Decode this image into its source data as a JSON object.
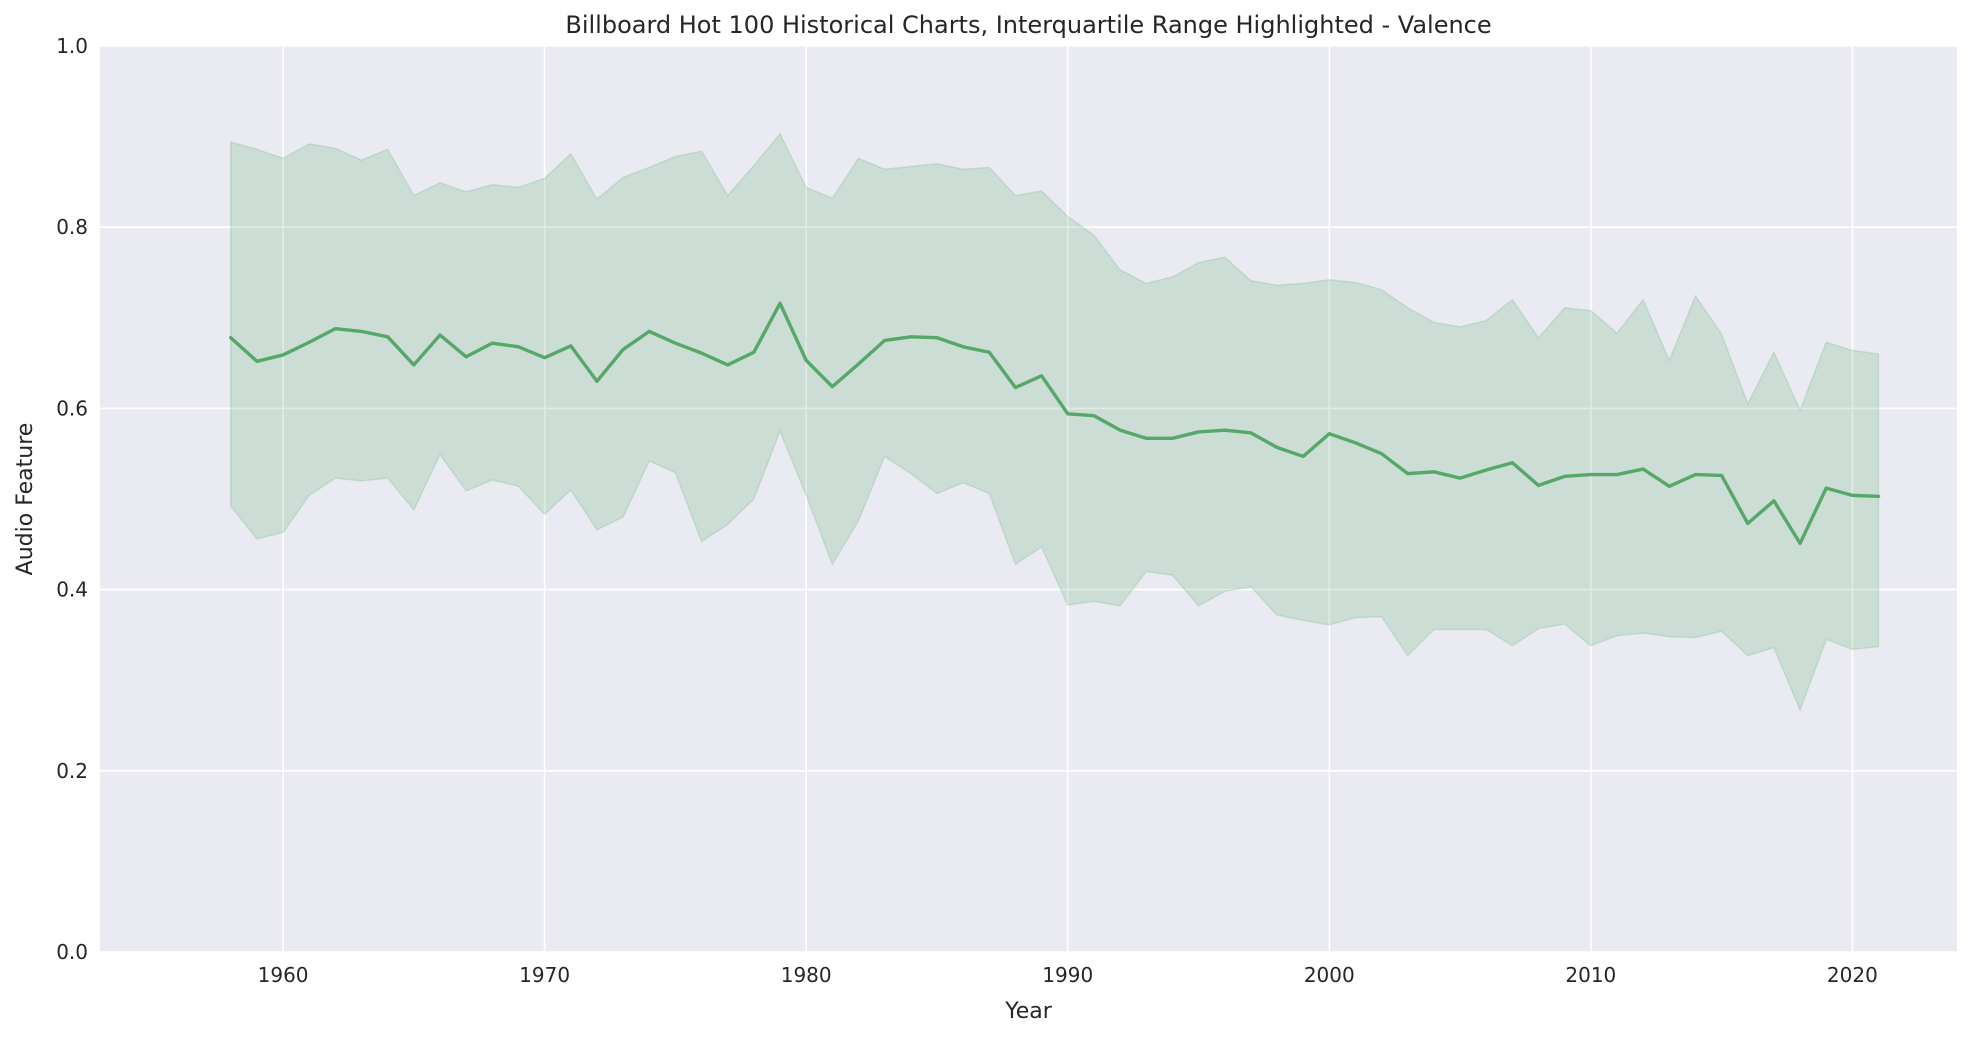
{
  "chart_data": {
    "type": "line",
    "title": "Billboard Hot 100 Historical Charts, Interquartile Range Highlighted - Valence",
    "xlabel": "Year",
    "ylabel": "Audio Feature",
    "xlim": [
      1953,
      2024
    ],
    "ylim": [
      0,
      1
    ],
    "x_ticks": [
      1960,
      1970,
      1980,
      1990,
      2000,
      2010,
      2020
    ],
    "y_ticks": [
      0.0,
      0.2,
      0.4,
      0.6,
      0.8,
      1.0
    ],
    "y_tick_labels": [
      "0.0",
      "0.2",
      "0.4",
      "0.6",
      "0.8",
      "1.0"
    ],
    "grid": true,
    "colors": {
      "background": "#eaeaf2",
      "grid": "#ffffff",
      "line": "#55a868",
      "band": "#55a868"
    },
    "x": [
      1958,
      1959,
      1960,
      1961,
      1962,
      1963,
      1964,
      1965,
      1966,
      1967,
      1968,
      1969,
      1970,
      1971,
      1972,
      1973,
      1974,
      1975,
      1976,
      1977,
      1978,
      1979,
      1980,
      1981,
      1982,
      1983,
      1984,
      1985,
      1986,
      1987,
      1988,
      1989,
      1990,
      1991,
      1992,
      1993,
      1994,
      1995,
      1996,
      1997,
      1998,
      1999,
      2000,
      2001,
      2002,
      2003,
      2004,
      2005,
      2006,
      2007,
      2008,
      2009,
      2010,
      2011,
      2012,
      2013,
      2014,
      2015,
      2016,
      2017,
      2018,
      2019,
      2020,
      2021
    ],
    "series": [
      {
        "type": "line",
        "values": [
          0.678,
          0.652,
          0.659,
          0.673,
          0.688,
          0.685,
          0.679,
          0.648,
          0.681,
          0.657,
          0.672,
          0.668,
          0.656,
          0.669,
          0.63,
          0.665,
          0.685,
          0.672,
          0.661,
          0.648,
          0.662,
          0.716,
          0.653,
          0.624,
          0.649,
          0.675,
          0.679,
          0.678,
          0.668,
          0.662,
          0.623,
          0.636,
          0.594,
          0.592,
          0.576,
          0.567,
          0.567,
          0.574,
          0.576,
          0.573,
          0.557,
          0.547,
          0.572,
          0.562,
          0.55,
          0.528,
          0.53,
          0.523,
          0.532,
          0.54,
          0.515,
          0.525,
          0.527,
          0.527,
          0.533,
          0.514,
          0.527,
          0.526,
          0.473,
          0.498,
          0.451,
          0.512,
          0.504,
          0.503
        ]
      },
      {
        "type": "band",
        "lower": [
          0.492,
          0.456,
          0.463,
          0.504,
          0.523,
          0.52,
          0.523,
          0.488,
          0.549,
          0.509,
          0.521,
          0.514,
          0.483,
          0.51,
          0.466,
          0.48,
          0.542,
          0.529,
          0.453,
          0.472,
          0.5,
          0.575,
          0.504,
          0.428,
          0.476,
          0.547,
          0.528,
          0.506,
          0.518,
          0.506,
          0.428,
          0.447,
          0.383,
          0.387,
          0.382,
          0.42,
          0.416,
          0.382,
          0.398,
          0.403,
          0.372,
          0.366,
          0.361,
          0.369,
          0.37,
          0.327,
          0.356,
          0.356,
          0.356,
          0.338,
          0.357,
          0.362,
          0.338,
          0.349,
          0.352,
          0.348,
          0.347,
          0.354,
          0.327,
          0.336,
          0.267,
          0.345,
          0.334,
          0.337
        ],
        "upper": [
          0.894,
          0.886,
          0.876,
          0.892,
          0.887,
          0.874,
          0.886,
          0.835,
          0.849,
          0.839,
          0.847,
          0.844,
          0.854,
          0.881,
          0.831,
          0.855,
          0.866,
          0.878,
          0.884,
          0.835,
          0.868,
          0.903,
          0.844,
          0.832,
          0.876,
          0.864,
          0.867,
          0.87,
          0.864,
          0.866,
          0.835,
          0.84,
          0.812,
          0.791,
          0.753,
          0.738,
          0.745,
          0.761,
          0.767,
          0.741,
          0.736,
          0.738,
          0.742,
          0.739,
          0.731,
          0.711,
          0.695,
          0.69,
          0.697,
          0.72,
          0.678,
          0.711,
          0.708,
          0.683,
          0.72,
          0.653,
          0.724,
          0.682,
          0.605,
          0.662,
          0.598,
          0.673,
          0.664,
          0.66
        ]
      }
    ]
  }
}
